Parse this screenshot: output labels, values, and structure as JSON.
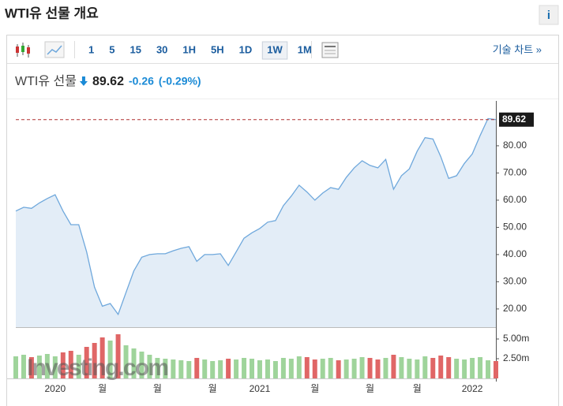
{
  "header": {
    "title": "WTI유 선물 개요",
    "info": "i"
  },
  "toolbar": {
    "intervals": [
      "1",
      "5",
      "15",
      "30",
      "1H",
      "5H",
      "1D",
      "1W",
      "1M"
    ],
    "selected": "1W",
    "technical_link": "기술 차트 »"
  },
  "quote": {
    "name": "WTI유 선물",
    "price": "89.62",
    "change": "-0.26",
    "change_pct": "(-0.29%)",
    "color": "#1a8ad6"
  },
  "chart_data": {
    "type": "area",
    "categories": [
      null,
      null,
      null,
      null,
      null,
      "2020",
      null,
      null,
      null,
      null,
      null,
      "월",
      null,
      null,
      null,
      null,
      null,
      null,
      "월",
      null,
      null,
      null,
      null,
      null,
      null,
      "월",
      null,
      null,
      null,
      null,
      null,
      "2021",
      null,
      null,
      null,
      null,
      null,
      null,
      "월",
      null,
      null,
      null,
      null,
      null,
      null,
      "월",
      null,
      null,
      null,
      null,
      null,
      "월",
      null,
      null,
      null,
      null,
      null,
      null,
      "2022",
      null,
      null,
      null
    ],
    "series": [
      {
        "color": "#6fa8dc",
        "fill": "#e3edf7",
        "values": [
          56,
          57.4,
          57,
          59,
          60.6,
          62,
          56,
          51,
          51,
          41,
          28,
          21,
          22,
          18,
          26,
          34,
          39,
          40,
          40.3,
          40.3,
          41.4,
          42.3,
          42.9,
          37.5,
          40,
          40,
          40.3,
          36,
          41,
          46,
          48,
          49.6,
          51.9,
          52.5,
          58,
          61.5,
          65.5,
          63,
          60,
          62.6,
          64.6,
          64,
          68.4,
          71.9,
          74.5,
          72.8,
          71.9,
          75,
          64,
          69,
          71.5,
          78,
          83,
          82.5,
          76,
          68,
          69,
          73.5,
          77,
          83.8,
          90,
          89.62
        ]
      }
    ],
    "ylim": [
      13.3,
      96.5
    ],
    "yticks": [
      {
        "value": 20,
        "label": "20.00"
      },
      {
        "value": 30,
        "label": "30.00"
      },
      {
        "value": 40,
        "label": "40.00"
      },
      {
        "value": 50,
        "label": "50.00"
      },
      {
        "value": 60,
        "label": "60.00"
      },
      {
        "value": 70,
        "label": "70.00"
      },
      {
        "value": 80,
        "label": "80.00"
      }
    ],
    "last_value": {
      "value": 89.62,
      "label": "89.62"
    },
    "volume": {
      "up_color": "#9fd49b",
      "down_color": "#e06666",
      "values": [
        2.8,
        3.0,
        2.7,
        2.9,
        3.1,
        2.8,
        3.3,
        3.5,
        3.0,
        4.0,
        4.5,
        5.2,
        4.8,
        5.6,
        4.2,
        3.8,
        3.4,
        3.0,
        2.6,
        2.5,
        2.4,
        2.3,
        2.2,
        2.6,
        2.4,
        2.2,
        2.3,
        2.5,
        2.4,
        2.6,
        2.5,
        2.3,
        2.4,
        2.2,
        2.6,
        2.5,
        2.8,
        2.7,
        2.4,
        2.5,
        2.6,
        2.3,
        2.4,
        2.5,
        2.7,
        2.6,
        2.4,
        2.6,
        3.0,
        2.7,
        2.5,
        2.4,
        2.8,
        2.6,
        2.9,
        2.7,
        2.5,
        2.4,
        2.6,
        2.7,
        2.3,
        2.2
      ],
      "ylim": [
        0,
        5.8
      ],
      "yticks": [
        {
          "value": 2.5,
          "label": "2.50m"
        },
        {
          "value": 5,
          "label": "5.00m"
        }
      ]
    },
    "watermark": "Investing.com"
  }
}
